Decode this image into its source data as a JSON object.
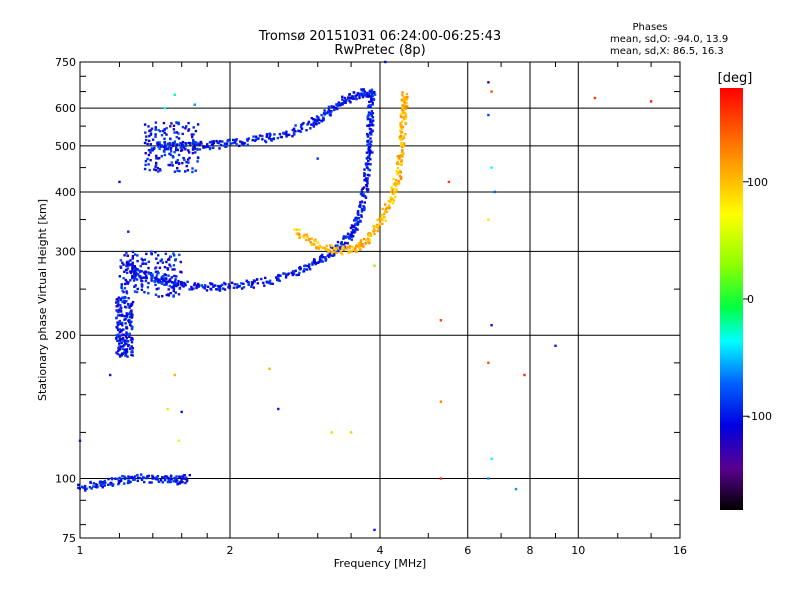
{
  "chart_data": {
    "type": "scatter",
    "title_line1": "Tromsø 20151031 06:24:00-06:25:43",
    "title_line2": "RwPretec (8p)",
    "stats": {
      "heading": "Phases",
      "line_o": "mean, sd,O: -94.0, 13.9",
      "line_x": "mean, sd,X:  86.5, 16.3"
    },
    "xlabel": "Frequency [MHz]",
    "ylabel": "Stationary phase Virtual Height [km]",
    "x_scale": "log",
    "y_scale": "log",
    "xlim": [
      1,
      16
    ],
    "ylim": [
      75,
      750
    ],
    "x_ticks": [
      1,
      2,
      4,
      6,
      8,
      10,
      16
    ],
    "x_tick_labels": [
      "1",
      "2",
      "4",
      "6",
      "8",
      "10",
      "16"
    ],
    "y_ticks": [
      75,
      100,
      200,
      300,
      400,
      500,
      600,
      750
    ],
    "y_tick_labels": [
      "75",
      "100",
      "200",
      "300",
      "400",
      "500",
      "600",
      "750"
    ],
    "grid": true,
    "colorbar": {
      "label": "[deg]",
      "range": [
        -180,
        180
      ],
      "ticks": [
        100,
        0,
        -100
      ],
      "tick_labels": [
        "100",
        "0",
        "-100"
      ]
    },
    "traces": [
      {
        "name": "",
        "phase_deg": -100,
        "color": "#1a2fe0",
        "points": [
          [
            1.25,
            285
          ],
          [
            1.3,
            270
          ],
          [
            1.4,
            265
          ],
          [
            1.5,
            258
          ],
          [
            1.6,
            255
          ],
          [
            1.8,
            252
          ],
          [
            2.0,
            253
          ],
          [
            2.3,
            258
          ],
          [
            2.6,
            266
          ],
          [
            2.9,
            280
          ],
          [
            3.1,
            292
          ],
          [
            3.3,
            305
          ],
          [
            3.5,
            325
          ],
          [
            3.6,
            345
          ],
          [
            3.7,
            380
          ],
          [
            3.75,
            420
          ],
          [
            3.8,
            470
          ],
          [
            3.82,
            520
          ],
          [
            3.83,
            580
          ],
          [
            3.85,
            640
          ]
        ]
      },
      {
        "name": "",
        "phase_deg": -100,
        "color": "#1a2fe0",
        "points": [
          [
            1.45,
            500
          ],
          [
            1.6,
            498
          ],
          [
            1.8,
            500
          ],
          [
            2.0,
            505
          ],
          [
            2.3,
            515
          ],
          [
            2.6,
            530
          ],
          [
            2.9,
            555
          ],
          [
            3.1,
            580
          ],
          [
            3.3,
            610
          ],
          [
            3.5,
            635
          ],
          [
            3.7,
            645
          ],
          [
            3.9,
            645
          ]
        ]
      },
      {
        "name": "",
        "phase_deg": 100,
        "color": "#d4d400",
        "points": [
          [
            2.7,
            330
          ],
          [
            3.0,
            310
          ],
          [
            3.3,
            300
          ],
          [
            3.6,
            305
          ],
          [
            3.8,
            320
          ],
          [
            4.0,
            345
          ],
          [
            4.2,
            380
          ],
          [
            4.35,
            430
          ],
          [
            4.42,
            480
          ],
          [
            4.45,
            540
          ],
          [
            4.47,
            600
          ],
          [
            4.48,
            640
          ]
        ]
      },
      {
        "name": "",
        "phase_deg": -100,
        "color": "#1a2fe0",
        "points": [
          [
            1.0,
            96
          ],
          [
            1.1,
            97
          ],
          [
            1.2,
            99
          ],
          [
            1.3,
            100
          ],
          [
            1.45,
            100
          ],
          [
            1.55,
            99
          ],
          [
            1.65,
            100
          ]
        ]
      }
    ],
    "clusters": [
      {
        "phase_deg": -100,
        "color": "#1a2fe0",
        "x": [
          1.35,
          1.75
        ],
        "y": [
          440,
          560
        ]
      },
      {
        "phase_deg": -100,
        "color": "#1a2fe0",
        "x": [
          1.2,
          1.6
        ],
        "y": [
          240,
          300
        ]
      },
      {
        "phase_deg": -100,
        "color": "#2020d0",
        "x": [
          1.18,
          1.28
        ],
        "y": [
          180,
          240
        ]
      }
    ],
    "scattered_points": [
      [
        1.0,
        120,
        -100
      ],
      [
        1.15,
        165,
        -100
      ],
      [
        1.2,
        420,
        -120
      ],
      [
        1.25,
        330,
        -100
      ],
      [
        1.5,
        140,
        50
      ],
      [
        1.55,
        165,
        100
      ],
      [
        1.58,
        120,
        60
      ],
      [
        1.6,
        138,
        -100
      ],
      [
        1.48,
        600,
        -40
      ],
      [
        1.55,
        640,
        -30
      ],
      [
        1.7,
        610,
        -60
      ],
      [
        2.5,
        140,
        -100
      ],
      [
        2.4,
        170,
        100
      ],
      [
        3.0,
        470,
        -90
      ],
      [
        3.2,
        125,
        40
      ],
      [
        3.5,
        125,
        90
      ],
      [
        3.9,
        280,
        30
      ],
      [
        3.9,
        78,
        -100
      ],
      [
        4.1,
        760,
        -110
      ],
      [
        5.3,
        215,
        150
      ],
      [
        5.3,
        145,
        120
      ],
      [
        5.5,
        420,
        150
      ],
      [
        6.6,
        680,
        -150
      ],
      [
        6.7,
        650,
        140
      ],
      [
        6.6,
        580,
        -80
      ],
      [
        6.7,
        450,
        -40
      ],
      [
        6.6,
        350,
        80
      ],
      [
        6.7,
        210,
        -100
      ],
      [
        6.6,
        175,
        140
      ],
      [
        6.7,
        110,
        -40
      ],
      [
        6.6,
        100,
        -60
      ],
      [
        7.5,
        95,
        -60
      ],
      [
        7.8,
        165,
        160
      ],
      [
        9.0,
        190,
        -100
      ],
      [
        10.8,
        630,
        150
      ],
      [
        14.0,
        620,
        170
      ],
      [
        6.8,
        400,
        -70
      ],
      [
        5.3,
        100,
        160
      ]
    ]
  }
}
